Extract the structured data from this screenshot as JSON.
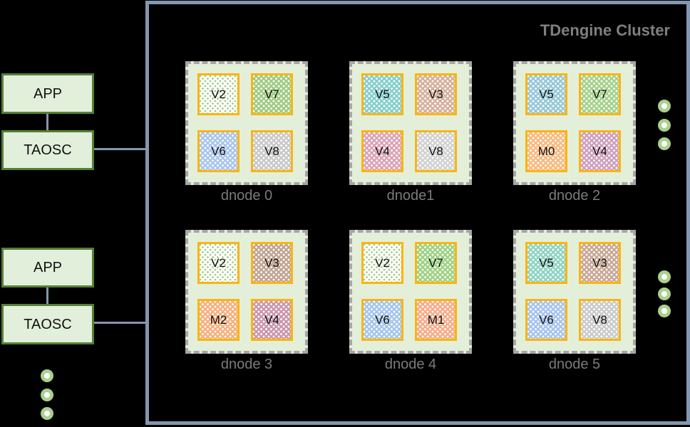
{
  "page": {
    "background": "#000000"
  },
  "clients": [
    {
      "app_label": "APP",
      "taosc_label": "TAOSC"
    },
    {
      "app_label": "APP",
      "taosc_label": "TAOSC"
    }
  ],
  "client_box": {
    "fill": "#e2efda",
    "border_color": "#538135"
  },
  "connector_color": "#8497b0",
  "ellipsis_dot": {
    "ring_color": "#a9d18e",
    "center_color": "#ffffff"
  },
  "cluster": {
    "title": "TDengine Cluster",
    "title_color": "#7f7f7f",
    "border_color": "#8497b0",
    "dnode_fill": "#e4efda",
    "dnode_border_color": "#a6a6a6",
    "vnode_border_color": "#f9b511",
    "label_color": "#7b7b7b",
    "dnodes": [
      {
        "label": "dnode 0",
        "vnodes": [
          {
            "label": "V2",
            "fill": "#ffffff",
            "dot": "#a6cd8e"
          },
          {
            "label": "V7",
            "fill": "#9fcc82",
            "dot": "#ffffff"
          },
          {
            "label": "V6",
            "fill": "#a9c6ed",
            "dot": "#ffffff"
          },
          {
            "label": "V8",
            "fill": "#c9c9c9",
            "dot": "#ffffff"
          }
        ]
      },
      {
        "label": "dnode1",
        "vnodes": [
          {
            "label": "V5",
            "fill": "#85cfcd",
            "dot": "#ffffff"
          },
          {
            "label": "V3",
            "fill": "#d6b19d",
            "dot": "#ffffff"
          },
          {
            "label": "V4",
            "fill": "#dba4b6",
            "dot": "#ffffff"
          },
          {
            "label": "V8",
            "fill": "#d2d2d2",
            "dot": "#ffffff"
          }
        ]
      },
      {
        "label": "dnode 2",
        "vnodes": [
          {
            "label": "V5",
            "fill": "#97c8d9",
            "dot": "#ffffff"
          },
          {
            "label": "V7",
            "fill": "#a5d28b",
            "dot": "#ffffff"
          },
          {
            "label": "M0",
            "fill": "#f9b97f",
            "dot": "#ffffff"
          },
          {
            "label": "V4",
            "fill": "#cfa0bd",
            "dot": "#ffffff"
          }
        ]
      },
      {
        "label": "dnode 3",
        "vnodes": [
          {
            "label": "V2",
            "fill": "#ffffff",
            "dot": "#a6cd8e"
          },
          {
            "label": "V3",
            "fill": "#c2a493",
            "dot": "#ffffff"
          },
          {
            "label": "M2",
            "fill": "#f6b07e",
            "dot": "#ffffff"
          },
          {
            "label": "V4",
            "fill": "#cb97ac",
            "dot": "#ffffff"
          }
        ]
      },
      {
        "label": "dnode 4",
        "vnodes": [
          {
            "label": "V2",
            "fill": "#ffffff",
            "dot": "#a6cd8e"
          },
          {
            "label": "V7",
            "fill": "#9ed283",
            "dot": "#ffffff"
          },
          {
            "label": "V6",
            "fill": "#a5c6ec",
            "dot": "#ffffff"
          },
          {
            "label": "M1",
            "fill": "#f6ac8a",
            "dot": "#ffffff"
          }
        ]
      },
      {
        "label": "dnode 5",
        "vnodes": [
          {
            "label": "V5",
            "fill": "#8fd4c2",
            "dot": "#ffffff"
          },
          {
            "label": "V3",
            "fill": "#c9a896",
            "dot": "#ffffff"
          },
          {
            "label": "V6",
            "fill": "#a8c4ee",
            "dot": "#ffffff"
          },
          {
            "label": "V8",
            "fill": "#cbcbcb",
            "dot": "#ffffff"
          }
        ]
      }
    ]
  }
}
